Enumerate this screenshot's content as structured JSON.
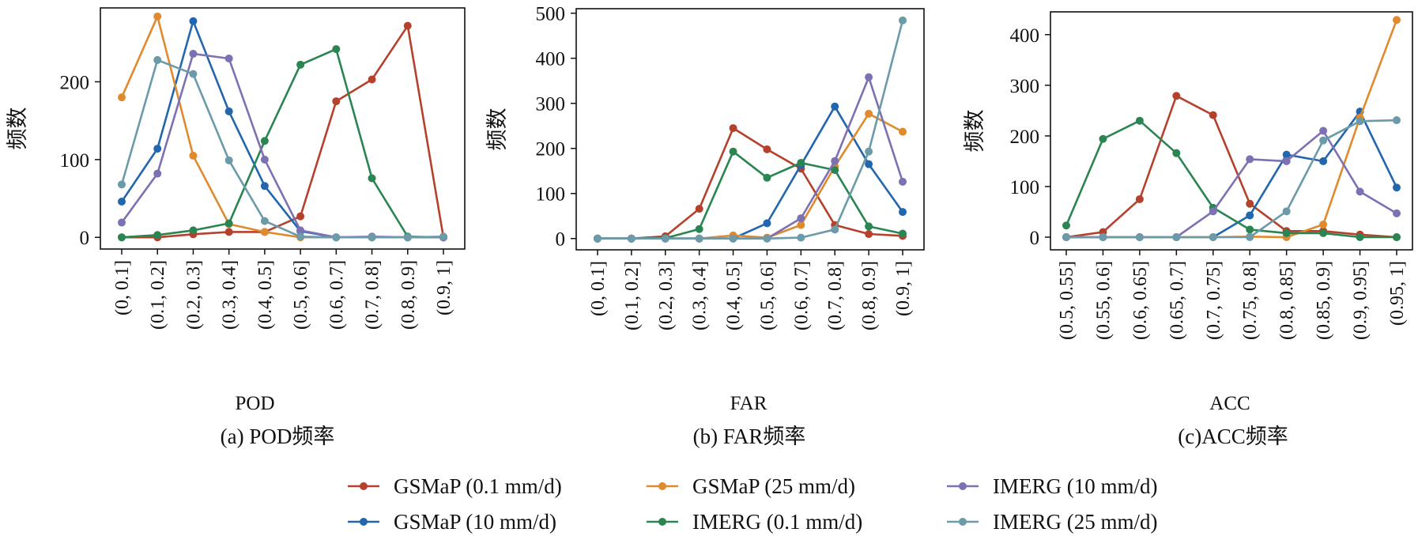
{
  "colors": {
    "GSMaP (0.1 mm/d)": "#b5412d",
    "GSMaP (10 mm/d)": "#2266ad",
    "GSMaP (25 mm/d)": "#e08a2e",
    "IMERG (0.1 mm/d)": "#2a8552",
    "IMERG (10 mm/d)": "#7d70b3",
    "IMERG (25 mm/d)": "#6b9aa9"
  },
  "legend": {
    "items": [
      "GSMaP (0.1 mm/d)",
      "GSMaP (25 mm/d)",
      "IMERG (10 mm/d)",
      "GSMaP (10 mm/d)",
      "IMERG (0.1 mm/d)",
      "IMERG (25 mm/d)"
    ],
    "placement": "bottom-center",
    "columns": 3
  },
  "chart_data": [
    {
      "type": "line",
      "title": "(a) POD频率",
      "xlabel": "POD",
      "ylabel": "频数",
      "ylim": [
        -15,
        295
      ],
      "yticks": [
        0,
        100,
        200
      ],
      "grid": false,
      "categories": [
        "(0, 0.1]",
        "(0.1, 0.2]",
        "(0.2, 0.3]",
        "(0.3, 0.4]",
        "(0.4, 0.5]",
        "(0.5, 0.6]",
        "(0.6, 0.7]",
        "(0.7, 0.8]",
        "(0.8, 0.9]",
        "(0.9, 1]"
      ],
      "series": [
        {
          "name": "GSMaP (0.1 mm/d)",
          "values": [
            0,
            0,
            4,
            7,
            7,
            27,
            175,
            203,
            272,
            0
          ]
        },
        {
          "name": "GSMaP (10 mm/d)",
          "values": [
            46,
            114,
            278,
            162,
            66,
            8,
            0,
            0,
            0,
            0
          ]
        },
        {
          "name": "GSMaP (25 mm/d)",
          "values": [
            180,
            284,
            105,
            17,
            7,
            0,
            0,
            0,
            0,
            0
          ]
        },
        {
          "name": "IMERG (0.1 mm/d)",
          "values": [
            0,
            3,
            9,
            18,
            124,
            222,
            242,
            76,
            1,
            0
          ]
        },
        {
          "name": "IMERG (10 mm/d)",
          "values": [
            19,
            82,
            236,
            230,
            100,
            9,
            0,
            1,
            0,
            0
          ]
        },
        {
          "name": "IMERG (25 mm/d)",
          "values": [
            68,
            228,
            210,
            99,
            21,
            1,
            0,
            0,
            0,
            1
          ]
        }
      ]
    },
    {
      "type": "line",
      "title": "(b) FAR频率",
      "xlabel": "FAR",
      "ylabel": "频数",
      "ylim": [
        -25,
        510
      ],
      "yticks": [
        0,
        100,
        200,
        300,
        400,
        500
      ],
      "grid": false,
      "categories": [
        "(0, 0.1]",
        "(0.1, 0.2]",
        "(0.2, 0.3]",
        "(0.3, 0.4]",
        "(0.4, 0.5]",
        "(0.5, 0.6]",
        "(0.6, 0.7]",
        "(0.7, 0.8]",
        "(0.8, 0.9]",
        "(0.9, 1]"
      ],
      "series": [
        {
          "name": "GSMaP (0.1 mm/d)",
          "values": [
            0,
            0,
            5,
            66,
            245,
            198,
            155,
            30,
            10,
            6
          ]
        },
        {
          "name": "GSMaP (10 mm/d)",
          "values": [
            0,
            0,
            0,
            0,
            0,
            34,
            163,
            293,
            165,
            59
          ]
        },
        {
          "name": "GSMaP (25 mm/d)",
          "values": [
            0,
            0,
            0,
            0,
            7,
            2,
            30,
            160,
            277,
            237
          ]
        },
        {
          "name": "IMERG (0.1 mm/d)",
          "values": [
            0,
            0,
            1,
            21,
            193,
            135,
            168,
            152,
            27,
            11
          ]
        },
        {
          "name": "IMERG (10 mm/d)",
          "values": [
            0,
            0,
            0,
            0,
            0,
            0,
            45,
            172,
            358,
            126
          ]
        },
        {
          "name": "IMERG (25 mm/d)",
          "values": [
            0,
            0,
            0,
            0,
            0,
            0,
            2,
            20,
            193,
            484
          ]
        }
      ]
    },
    {
      "type": "line",
      "title": "(c)ACC频率",
      "xlabel": "ACC",
      "ylabel": "频数",
      "ylim": [
        -25,
        445
      ],
      "yticks": [
        0,
        100,
        200,
        300,
        400
      ],
      "grid": false,
      "categories": [
        "(0.5, 0.55]",
        "(0.55, 0.6]",
        "(0.6, 0.65]",
        "(0.65, 0.7]",
        "(0.7, 0.75]",
        "(0.75, 0.8]",
        "(0.8, 0.85]",
        "(0.85, 0.9]",
        "(0.9, 0.95]",
        "(0.95, 1]"
      ],
      "series": [
        {
          "name": "GSMaP (0.1 mm/d)",
          "values": [
            0,
            10,
            75,
            279,
            241,
            66,
            12,
            12,
            5,
            0
          ]
        },
        {
          "name": "GSMaP (10 mm/d)",
          "values": [
            0,
            0,
            0,
            0,
            0,
            43,
            163,
            150,
            248,
            98
          ]
        },
        {
          "name": "GSMaP (25 mm/d)",
          "values": [
            0,
            0,
            0,
            0,
            0,
            1,
            0,
            25,
            236,
            429
          ]
        },
        {
          "name": "IMERG (0.1 mm/d)",
          "values": [
            23,
            194,
            230,
            166,
            58,
            15,
            8,
            8,
            0,
            0
          ]
        },
        {
          "name": "IMERG (10 mm/d)",
          "values": [
            0,
            0,
            0,
            0,
            51,
            154,
            150,
            210,
            90,
            47
          ]
        },
        {
          "name": "IMERG (25 mm/d)",
          "values": [
            0,
            0,
            0,
            0,
            0,
            0,
            51,
            191,
            229,
            231
          ]
        }
      ]
    }
  ]
}
